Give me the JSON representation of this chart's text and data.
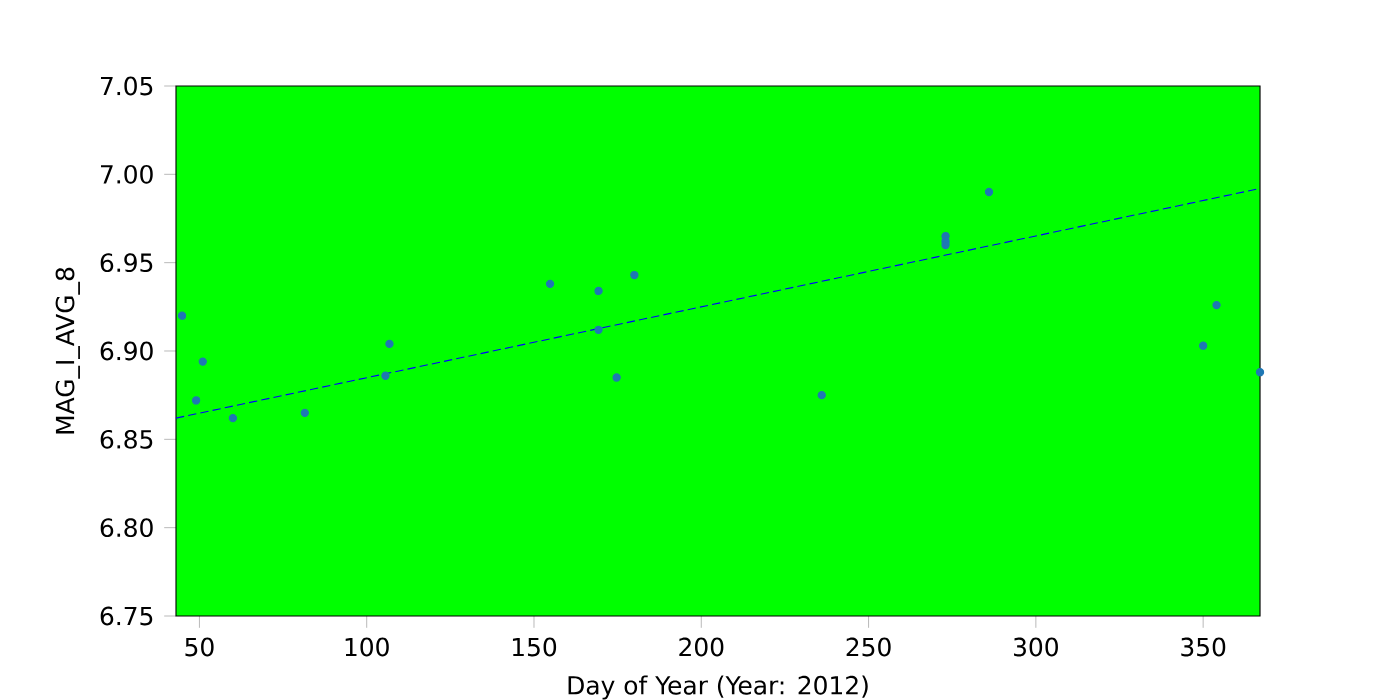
{
  "chart_data": {
    "type": "scatter",
    "xlabel": "Day of Year (Year: 2012)",
    "ylabel": "MAG_I_AVG_8",
    "xlim": [
      43,
      367
    ],
    "ylim": [
      6.75,
      7.05
    ],
    "xticks": [
      50,
      100,
      150,
      200,
      250,
      300,
      350
    ],
    "yticks": [
      6.75,
      {
        "value": 6.8,
        "label": "6.80"
      },
      6.85,
      {
        "value": 6.9,
        "label": "6.90"
      },
      6.95,
      {
        "value": 7.0,
        "label": "7.00"
      },
      7.05
    ],
    "marker": "circle",
    "series": [
      {
        "color": "#1f77b4",
        "x": [
          44.8,
          49,
          51,
          60,
          81.5,
          105.6,
          106.8,
          154.8,
          169.3,
          169.3,
          174.7,
          180,
          236,
          273,
          273,
          273,
          286,
          350,
          354,
          367
        ],
        "values": [
          6.92,
          6.872,
          6.894,
          6.862,
          6.865,
          6.886,
          6.904,
          6.938,
          6.934,
          6.912,
          6.885,
          6.943,
          6.875,
          6.965,
          6.962,
          6.96,
          6.99,
          6.903,
          6.926,
          6.888
        ]
      },
      {
        "type": "line",
        "color": "#0000ff",
        "line_style": "dashed",
        "marker": "none",
        "x": [
          43,
          367
        ],
        "values": [
          6.862,
          6.992
        ]
      }
    ]
  }
}
